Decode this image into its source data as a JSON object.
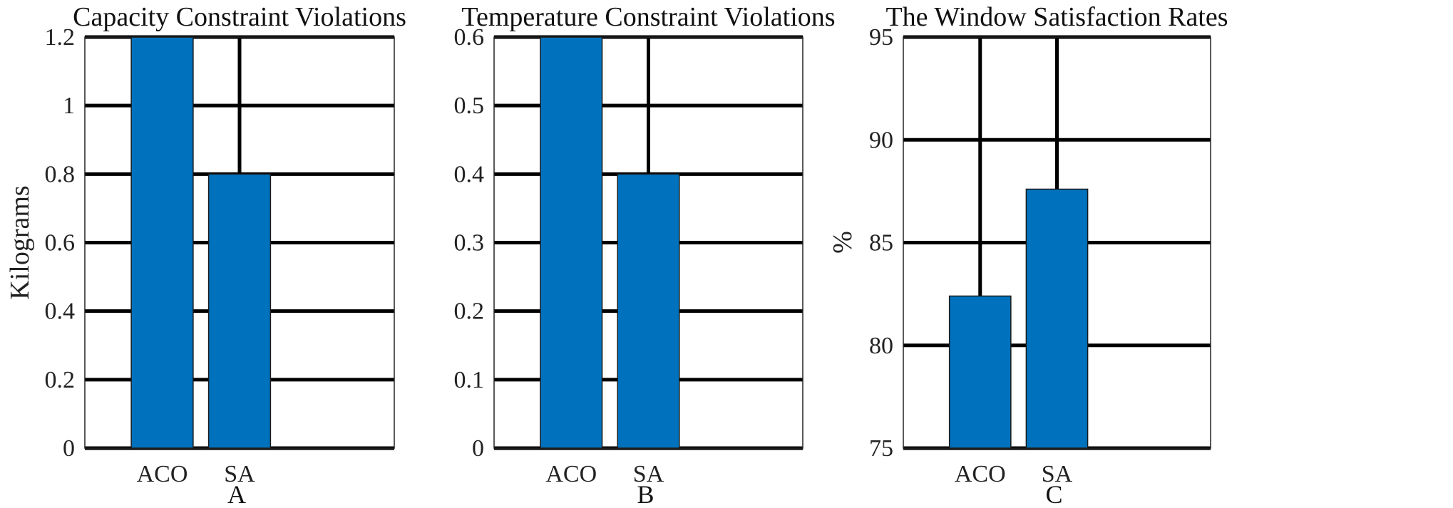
{
  "chart_data": [
    {
      "type": "bar",
      "title": "Capacity Constraint Violations",
      "ylabel": "Kilograms",
      "xlabel": "A",
      "categories": [
        "ACO",
        "SA"
      ],
      "values": [
        1.2,
        0.8
      ],
      "ylim": [
        0,
        1.2
      ],
      "yticks": [
        "0",
        "0.2",
        "0.4",
        "0.6",
        "0.8",
        "1",
        "1.2"
      ],
      "grid": true,
      "bar_color": "#0072BD"
    },
    {
      "type": "bar",
      "title": "Temperature Constraint Violations",
      "ylabel": "",
      "xlabel": "B",
      "categories": [
        "ACO",
        "SA"
      ],
      "values": [
        0.6,
        0.4
      ],
      "ylim": [
        0,
        0.6
      ],
      "yticks": [
        "0",
        "0.1",
        "0.2",
        "0.3",
        "0.4",
        "0.5",
        "0.6"
      ],
      "grid": true,
      "bar_color": "#0072BD"
    },
    {
      "type": "bar",
      "title": "The Window Satisfaction Rates",
      "ylabel": "%",
      "xlabel": "C",
      "categories": [
        "ACO",
        "SA"
      ],
      "values": [
        82.4,
        87.6
      ],
      "ylim": [
        75,
        95
      ],
      "yticks": [
        "75",
        "80",
        "85",
        "90",
        "95"
      ],
      "grid": true,
      "bar_color": "#0072BD"
    }
  ]
}
